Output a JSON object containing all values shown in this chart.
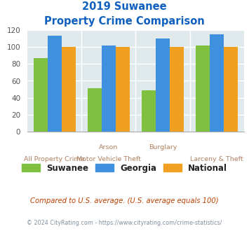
{
  "title_line1": "2019 Suwanee",
  "title_line2": "Property Crime Comparison",
  "suwanee": [
    87,
    51,
    49,
    102
  ],
  "georgia": [
    113,
    102,
    110,
    115
  ],
  "national": [
    100,
    100,
    100,
    100
  ],
  "colors": {
    "suwanee": "#80c040",
    "georgia": "#4090e0",
    "national": "#f0a020"
  },
  "ylim": [
    0,
    120
  ],
  "yticks": [
    0,
    20,
    40,
    60,
    80,
    100,
    120
  ],
  "background_color": "#e0eaec",
  "title_color": "#1060c0",
  "xlabel_color": "#b08060",
  "xlabel_top": [
    "",
    "Arson",
    "Burglary",
    ""
  ],
  "xlabel_bottom": [
    "All Property Crime",
    "Motor Vehicle Theft",
    "",
    "Larceny & Theft"
  ],
  "footnote1": "Compared to U.S. average. (U.S. average equals 100)",
  "footnote2": "© 2024 CityRating.com - https://www.cityrating.com/crime-statistics/",
  "footnote1_color": "#c04000",
  "footnote2_color": "#8090a0",
  "legend_labels": [
    "Suwanee",
    "Georgia",
    "National"
  ],
  "bar_width": 0.26
}
